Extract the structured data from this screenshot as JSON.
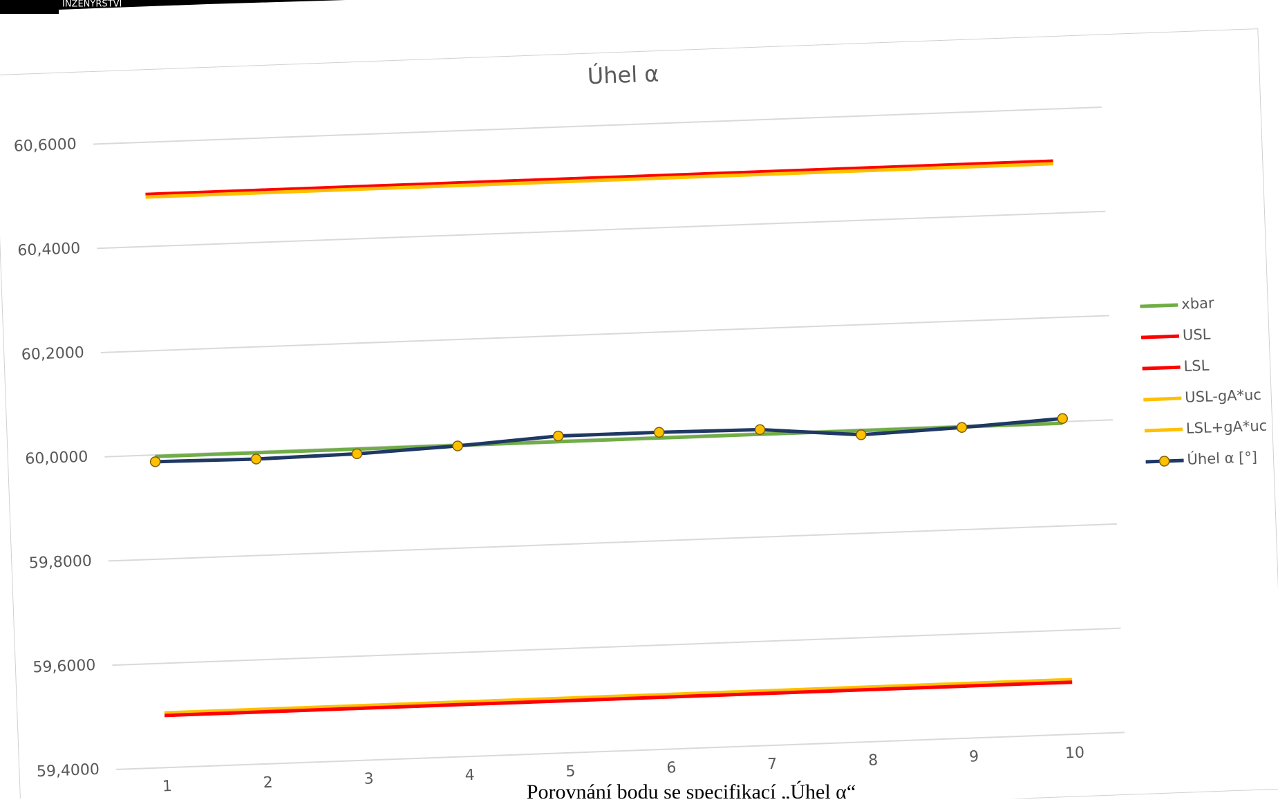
{
  "header": {
    "logo_text": "INŽENÝRSTVÍ"
  },
  "chart_data": {
    "type": "line",
    "title": "Úhel α",
    "categories": [
      "1",
      "2",
      "3",
      "4",
      "5",
      "6",
      "7",
      "8",
      "9",
      "10"
    ],
    "series": [
      {
        "name": "xbar",
        "color": "#70ad47",
        "values": [
          59.997,
          59.997,
          59.997,
          59.997,
          59.997,
          59.997,
          59.997,
          59.997,
          59.997,
          59.997
        ]
      },
      {
        "name": "USL",
        "color": "#ff0000",
        "values": [
          60.5,
          60.5,
          60.5,
          60.5,
          60.5,
          60.5,
          60.5,
          60.5,
          60.5,
          60.5
        ]
      },
      {
        "name": "LSL",
        "color": "#ff0000",
        "values": [
          59.5,
          59.5,
          59.5,
          59.5,
          59.5,
          59.5,
          59.5,
          59.5,
          59.5,
          59.5
        ]
      },
      {
        "name": "USL-gA*uc",
        "color": "#ffc000",
        "values": [
          60.495,
          60.495,
          60.495,
          60.495,
          60.495,
          60.495,
          60.495,
          60.495,
          60.495,
          60.495
        ]
      },
      {
        "name": "LSL+gA*uc",
        "color": "#ffc000",
        "values": [
          59.505,
          59.505,
          59.505,
          59.505,
          59.505,
          59.505,
          59.505,
          59.505,
          59.505,
          59.505
        ]
      },
      {
        "name": "Úhel α [°]",
        "color": "#1f3864",
        "marker_color": "#ffc000",
        "values": [
          59.987,
          59.985,
          59.988,
          59.996,
          60.008,
          60.008,
          60.006,
          59.989,
          59.996,
          60.006
        ]
      }
    ],
    "ylim": [
      59.4,
      60.6
    ],
    "yticks": [
      {
        "value": 59.4,
        "label": "59,4000"
      },
      {
        "value": 59.6,
        "label": "59,6000"
      },
      {
        "value": 59.8,
        "label": "59,8000"
      },
      {
        "value": 60.0,
        "label": "60,0000"
      },
      {
        "value": 60.2,
        "label": "60,2000"
      },
      {
        "value": 60.4,
        "label": "60,4000"
      },
      {
        "value": 60.6,
        "label": "60,6000"
      }
    ],
    "grid": true,
    "legend": "right"
  },
  "caption": "Porovnání bodu se specifikací „Úhel α“"
}
